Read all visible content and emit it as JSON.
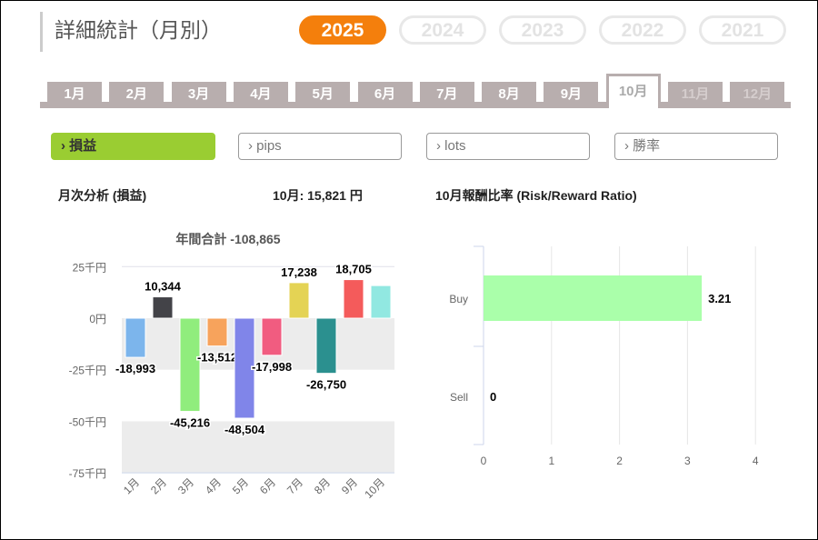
{
  "header": {
    "title": "詳細統計（月別）",
    "years": [
      "2025",
      "2024",
      "2023",
      "2022",
      "2021"
    ],
    "active_year": "2025"
  },
  "months": [
    "1月",
    "2月",
    "3月",
    "4月",
    "5月",
    "6月",
    "7月",
    "8月",
    "9月",
    "10月",
    "11月",
    "12月"
  ],
  "active_month": "10月",
  "subtabs": [
    "› 損益",
    "› pips",
    "› lots",
    "› 勝率"
  ],
  "labels": {
    "monthly_analysis": "月次分析 (損益)",
    "month_value": "10月:  15,821 円",
    "rr_title": "10月報酬比率 (Risk/Reward Ratio)"
  },
  "chart_data": [
    {
      "type": "bar",
      "title": "年間合計 -108,865",
      "categories": [
        "1月",
        "2月",
        "3月",
        "4月",
        "5月",
        "6月",
        "7月",
        "8月",
        "9月",
        "10月"
      ],
      "values": [
        -18993,
        10344,
        -45216,
        -13512,
        -48504,
        -17998,
        17238,
        -26750,
        18705,
        15821
      ],
      "data_labels": [
        "-18,993",
        "10,344",
        "-45,216",
        "-13,512",
        "-48,504",
        "-17,998",
        "17,238",
        "-26,750",
        "18,705",
        ""
      ],
      "colors": [
        "#7cb5ec",
        "#434348",
        "#90ed7d",
        "#f7a35c",
        "#8085e9",
        "#f15c80",
        "#e4d354",
        "#2b908f",
        "#f45b5b",
        "#91e8e1"
      ],
      "ylim": [
        -75000,
        25000
      ],
      "yticks": [
        25000,
        0,
        -25000,
        -50000,
        -75000
      ],
      "ytick_labels": [
        "25千円",
        "0円",
        "-25千円",
        "-50千円",
        "-75千円"
      ]
    },
    {
      "type": "bar",
      "orientation": "horizontal",
      "categories": [
        "Buy",
        "Sell"
      ],
      "values": [
        3.21,
        0
      ],
      "data_labels": [
        "3.21",
        "0"
      ],
      "color": "#aaffaa",
      "xlim": [
        0,
        4
      ],
      "xticks": [
        "0",
        "1",
        "2",
        "3",
        "4"
      ]
    }
  ]
}
